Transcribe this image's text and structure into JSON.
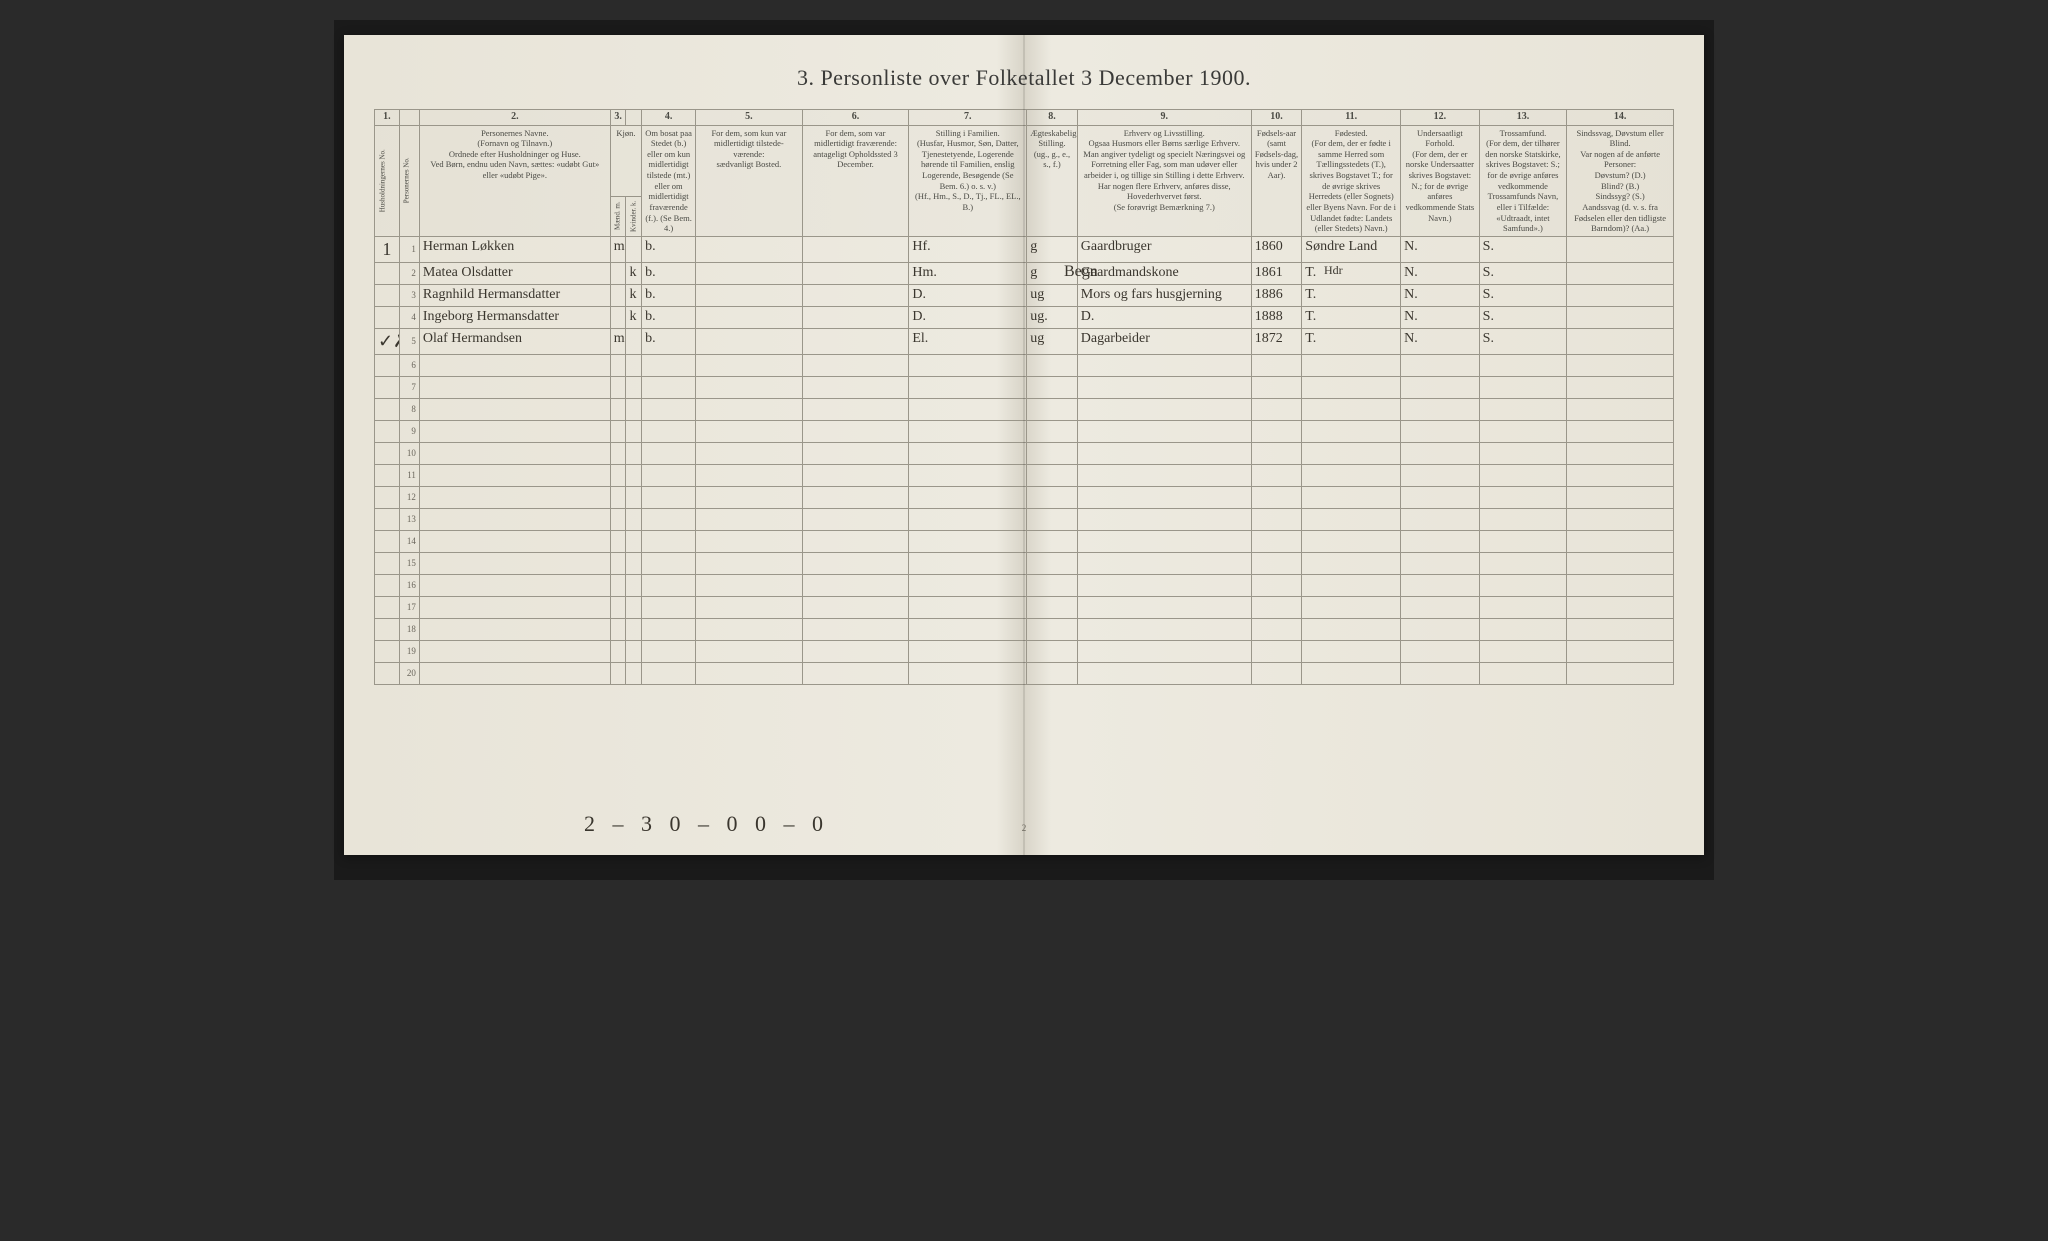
{
  "title": "3.  Personliste over Folketallet 3 December 1900.",
  "colnums": [
    "1.",
    "",
    "2.",
    "3.",
    "",
    "4.",
    "5.",
    "6.",
    "7.",
    "8.",
    "9.",
    "10.",
    "11.",
    "12.",
    "13.",
    "14."
  ],
  "headers": {
    "hh": "Husholdningernes No.",
    "pn": "Personernes No.",
    "name": "Personernes Navne.\n(Fornavn og Tilnavn.)\nOrdnede efter Husholdninger og Huse.\nVed Børn, endnu uden Navn, sættes: «udøbt Gut» eller «udøbt Pige».",
    "sex": "Kjøn.",
    "sexm": "Mænd.  m.",
    "sexk": "Kvinder.  k.",
    "res": "Om bosat paa Stedet (b.) eller om kun midlertidigt tilstede (mt.) eller om midlertidigt fraværende (f.). (Se Bem. 4.)",
    "tmp": "For dem, som kun var midlertidigt tilstede-værende:\nsædvanligt Bosted.",
    "abs": "For dem, som var midlertidigt fraværende:\nantageligt Opholdssted 3 December.",
    "fam": "Stilling i Familien.\n(Husfar, Husmor, Søn, Datter, Tjenestetyende, Logerende hørende til Familien, enslig Logerende, Besøgende (Se Bem. 6.) o. s. v.)\n(Hf., Hm., S., D., Tj., FL., EL., B.)",
    "mar": "Ægteskabelig Stilling.\n(ug., g., e., s., f.)",
    "occ": "Erhverv og Livsstilling.\nOgsaa Husmors eller Børns særlige Erhverv. Man angiver tydeligt og specielt Næringsvei og Forretning eller Fag, som man udøver eller arbeider i, og tillige sin Stilling i dette Erhverv. Har nogen flere Erhverv, anføres disse, Hovederhvervet først.\n(Se forøvrigt Bemærkning 7.)",
    "yr": "Fødsels-aar\n(samt Fødsels-dag, hvis under 2 Aar).",
    "bpl": "Fødested.\n(For dem, der er fødte i samme Herred som Tællingsstedets (T.), skrives Bogstavet T.; for de øvrige skrives Herredets (eller Sognets) eller Byens Navn. For de i Udlandet fødte: Landets (eller Stedets) Navn.)",
    "cit": "Undersaatligt Forhold.\n(For dem, der er norske Undersaatter skrives Bogstavet: N.; for de øvrige anføres vedkommende Stats Navn.)",
    "rel": "Trossamfund.\n(For dem, der tilhører den norske Statskirke, skrives Bogstavet: S.; for de øvrige anføres vedkommende Trossamfunds Navn, eller i Tilfælde: «Udtraadt, intet Samfund».)",
    "dis": "Sindssvag, Døvstum eller Blind.\nVar nogen af de anførte Personer:\nDøvstum?  (D.)\nBlind?  (B.)\nSindssyg?  (S.)\nAandssvag (d. v. s. fra Fødselen eller den tidligste Barndom)? (Aa.)"
  },
  "rows": [
    {
      "hh": "1",
      "pn": "1",
      "name": "Herman Løkken",
      "sexm": "m",
      "sexk": "",
      "res": "b.",
      "tmp": "",
      "abs": "",
      "fam": "Hf.",
      "mar": "g",
      "occ": "Gaardbruger",
      "yr": "1860",
      "bpl": "Søndre Land",
      "cit": "N.",
      "rel": "S.",
      "dis": ""
    },
    {
      "hh": "",
      "pn": "2",
      "name": "Matea Olsdatter",
      "sexm": "",
      "sexk": "k",
      "res": "b.",
      "tmp": "",
      "abs": "",
      "fam": "Hm.",
      "mar": "g",
      "occ": "Gaardmandskone",
      "yr": "1861",
      "bpl": "T.",
      "cit": "N.",
      "rel": "S.",
      "dis": ""
    },
    {
      "hh": "",
      "pn": "3",
      "name": "Ragnhild Hermansdatter",
      "sexm": "",
      "sexk": "k",
      "res": "b.",
      "tmp": "",
      "abs": "",
      "fam": "D.",
      "mar": "ug",
      "occ": "Mors og fars husgjerning",
      "yr": "1886",
      "bpl": "T.",
      "cit": "N.",
      "rel": "S.",
      "dis": ""
    },
    {
      "hh": "",
      "pn": "4",
      "name": "Ingeborg Hermansdatter",
      "sexm": "",
      "sexk": "k",
      "res": "b.",
      "tmp": "",
      "abs": "",
      "fam": "D.",
      "mar": "ug.",
      "occ": "D.",
      "yr": "1888",
      "bpl": "T.",
      "cit": "N.",
      "rel": "S.",
      "dis": ""
    },
    {
      "hh": "✓✗",
      "pn": "5",
      "name": "Olaf Hermandsen",
      "sexm": "m",
      "sexk": "",
      "res": "b.",
      "tmp": "",
      "abs": "",
      "fam": "El.",
      "mar": "ug",
      "occ": "Dagarbeider",
      "yr": "1872",
      "bpl": "T.",
      "cit": "N.",
      "rel": "S.",
      "dis": ""
    }
  ],
  "empty_rows": 15,
  "bottom_annotation": "2 – 3   0 – 0     0 – 0",
  "printed_page_num": "2",
  "header_annotation": "Begn",
  "col11_annotation": "Hdr"
}
